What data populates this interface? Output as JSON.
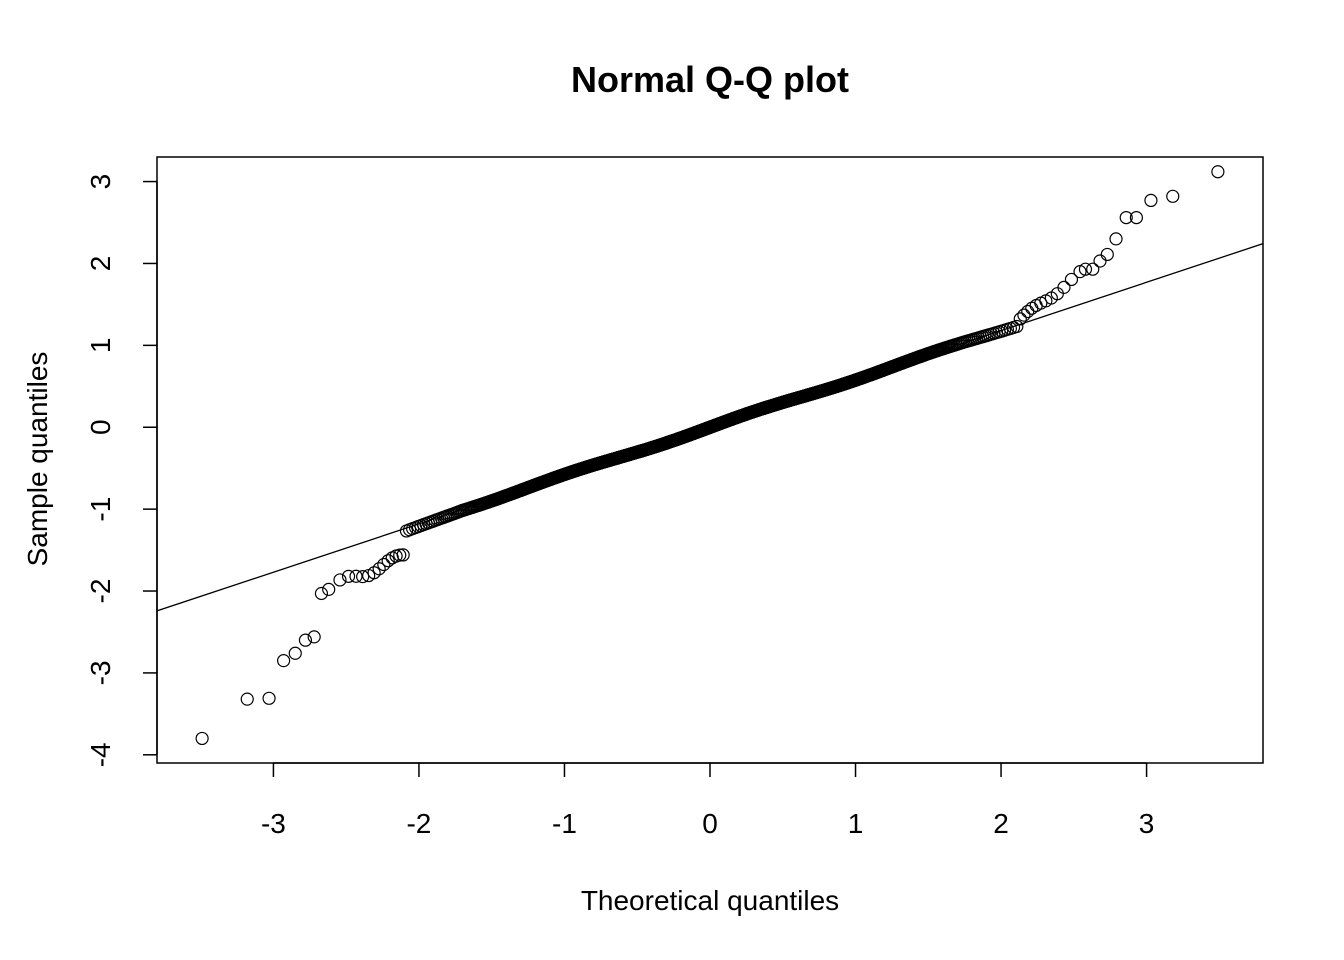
{
  "chart_data": {
    "type": "scatter",
    "title": "Normal Q-Q plot",
    "xlabel": "Theoretical quantiles",
    "ylabel": "Sample quantiles",
    "xlim": [
      -3.8,
      3.8
    ],
    "ylim": [
      -4.1,
      3.3
    ],
    "x_ticks": [
      -3,
      -2,
      -1,
      0,
      1,
      2,
      3
    ],
    "y_ticks": [
      -4,
      -3,
      -2,
      -1,
      0,
      1,
      2,
      3
    ],
    "x_tick_labels": [
      "-3",
      "-2",
      "-1",
      "0",
      "1",
      "2",
      "3"
    ],
    "y_tick_labels": [
      "-4",
      "-3",
      "-2",
      "-1",
      "0",
      "1",
      "2",
      "3"
    ],
    "grid": false,
    "reference_line": {
      "intercept": 0.0,
      "slope": 0.59
    },
    "sample_size": 1000,
    "tail_points": [
      [
        -3.49,
        -3.8
      ],
      [
        -3.18,
        -3.32
      ],
      [
        -3.03,
        -3.31
      ],
      [
        -2.93,
        -2.85
      ],
      [
        -2.85,
        -2.76
      ],
      [
        -2.78,
        -2.6
      ],
      [
        -2.72,
        -2.56
      ],
      [
        -2.67,
        -2.03
      ],
      [
        -2.62,
        -1.98
      ],
      [
        2.58,
        1.93
      ],
      [
        2.63,
        1.93
      ],
      [
        2.68,
        2.03
      ],
      [
        2.73,
        2.11
      ],
      [
        2.79,
        2.3
      ],
      [
        2.86,
        2.56
      ],
      [
        2.93,
        2.56
      ],
      [
        3.03,
        2.77
      ],
      [
        3.18,
        2.82
      ],
      [
        3.49,
        3.12
      ]
    ]
  }
}
